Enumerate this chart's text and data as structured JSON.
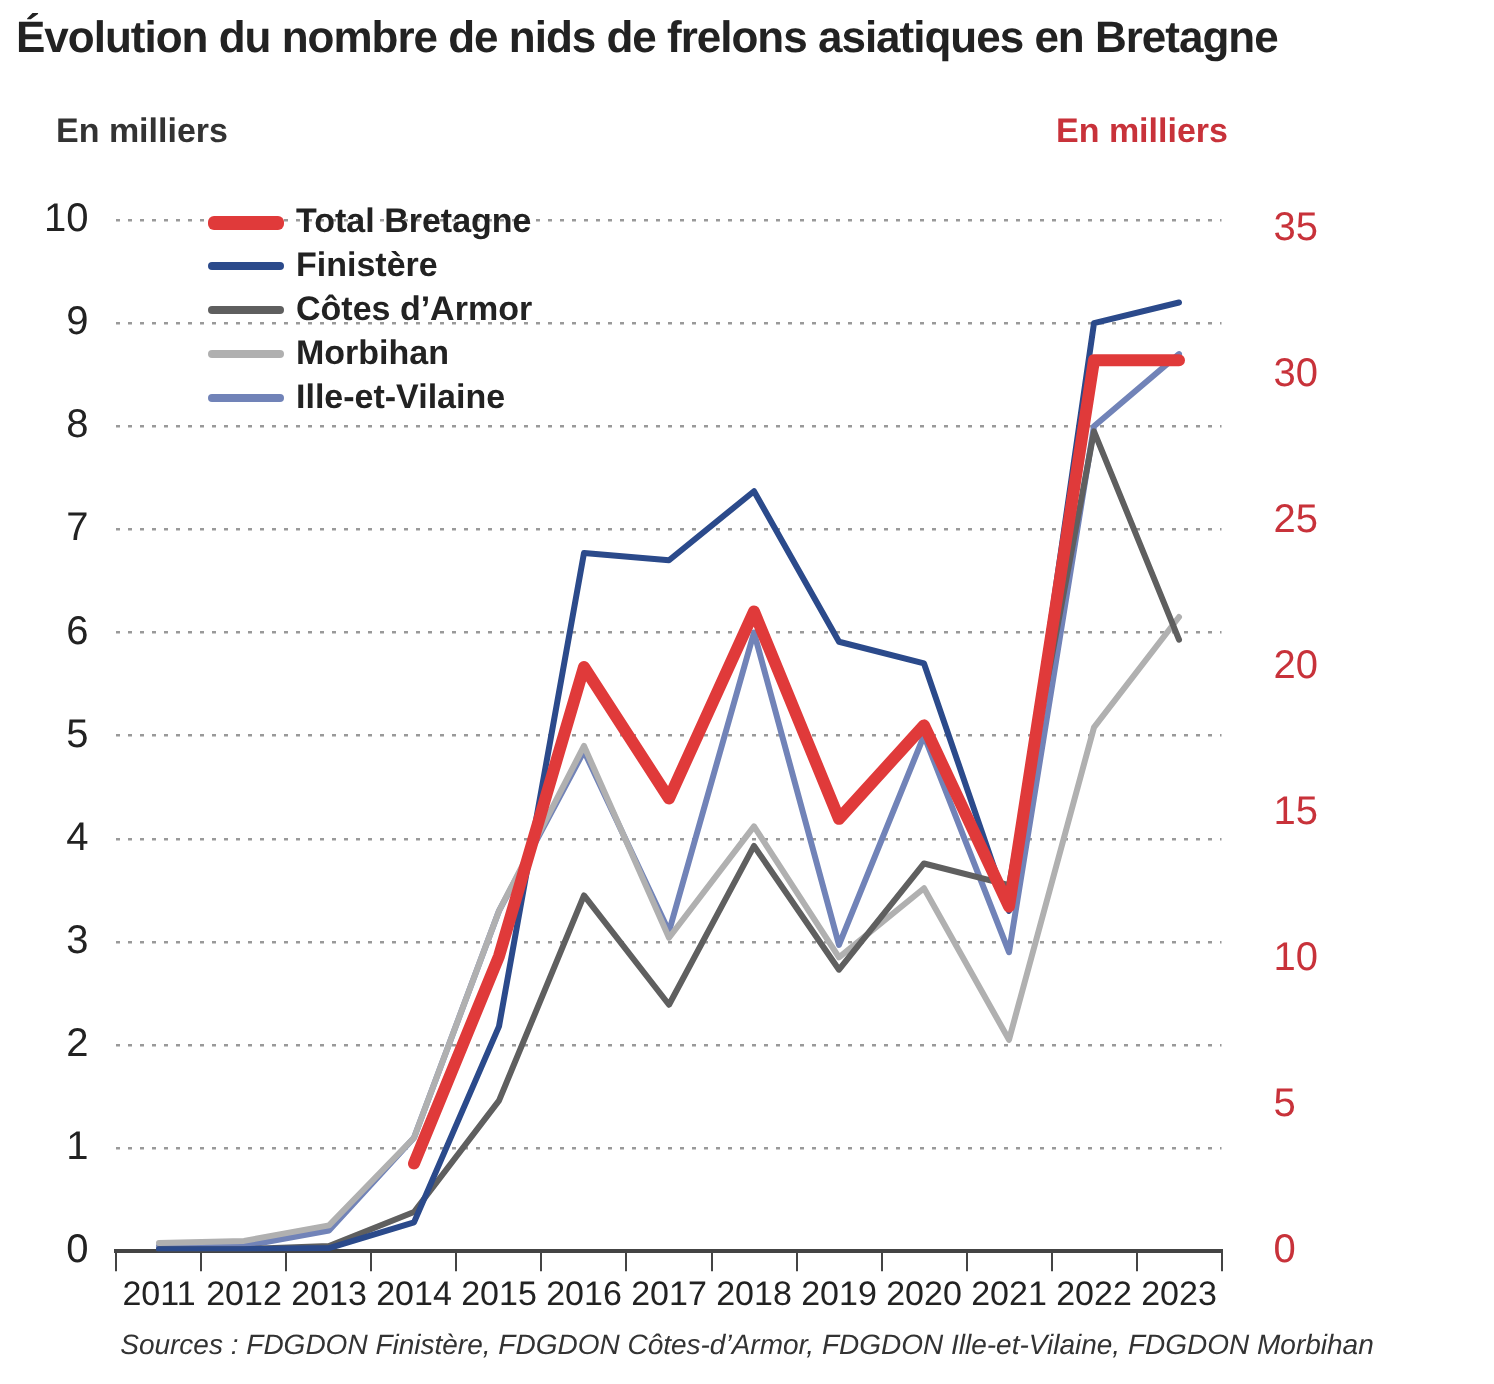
{
  "chart_data": {
    "type": "line",
    "title": "Évolution du nombre de nids de frelons asiatiques en Bretagne",
    "ylabel": "En milliers",
    "y2label": "En milliers",
    "categories": [
      "2011",
      "2012",
      "2013",
      "2014",
      "2015",
      "2016",
      "2017",
      "2018",
      "2019",
      "2020",
      "2021",
      "2022",
      "2023"
    ],
    "series": [
      {
        "name": "Total Bretagne",
        "color": "#e03a3a",
        "axis": "y2",
        "values": [
          null,
          null,
          null,
          3.0,
          10.1,
          20.0,
          15.5,
          21.9,
          14.8,
          18.0,
          11.8,
          30.5,
          30.5
        ]
      },
      {
        "name": "Finistère",
        "color": "#2b4a8b",
        "values": [
          0.02,
          0.02,
          0.03,
          0.28,
          2.18,
          6.77,
          6.7,
          7.37,
          5.91,
          5.7,
          3.3,
          9.0,
          9.2
        ]
      },
      {
        "name": "Côtes d’Armor",
        "color": "#5f5f5f",
        "values": [
          0.02,
          0.02,
          0.05,
          0.38,
          1.46,
          3.45,
          2.39,
          3.93,
          2.73,
          3.76,
          3.55,
          7.95,
          5.93
        ]
      },
      {
        "name": "Morbihan",
        "color": "#b0b0b0",
        "values": [
          0.08,
          0.1,
          0.25,
          1.1,
          3.3,
          4.9,
          3.04,
          4.12,
          2.85,
          3.52,
          2.05,
          5.08,
          6.15
        ]
      },
      {
        "name": "Ille-et-Vilaine",
        "color": "#7183b8",
        "values": [
          0.05,
          0.05,
          0.2,
          1.1,
          3.3,
          4.85,
          3.1,
          6.0,
          2.97,
          5.0,
          2.9,
          8.0,
          8.7
        ]
      }
    ],
    "ylim": [
      0,
      10
    ],
    "yticks": [
      0,
      1,
      2,
      3,
      4,
      5,
      6,
      7,
      8,
      9,
      10
    ],
    "y2lim": [
      0,
      35.3
    ],
    "y2ticks": [
      0,
      5,
      10,
      15,
      20,
      25,
      30,
      35
    ],
    "grid": "y",
    "legend": "top left",
    "marker": "none",
    "line_style": "solid",
    "annotations": [
      "Sources : FDGDON Finistère, FDGDON Côtes-d’Armor, FDGDON Ille-et-Vilaine, FDGDON Morbihan"
    ]
  }
}
